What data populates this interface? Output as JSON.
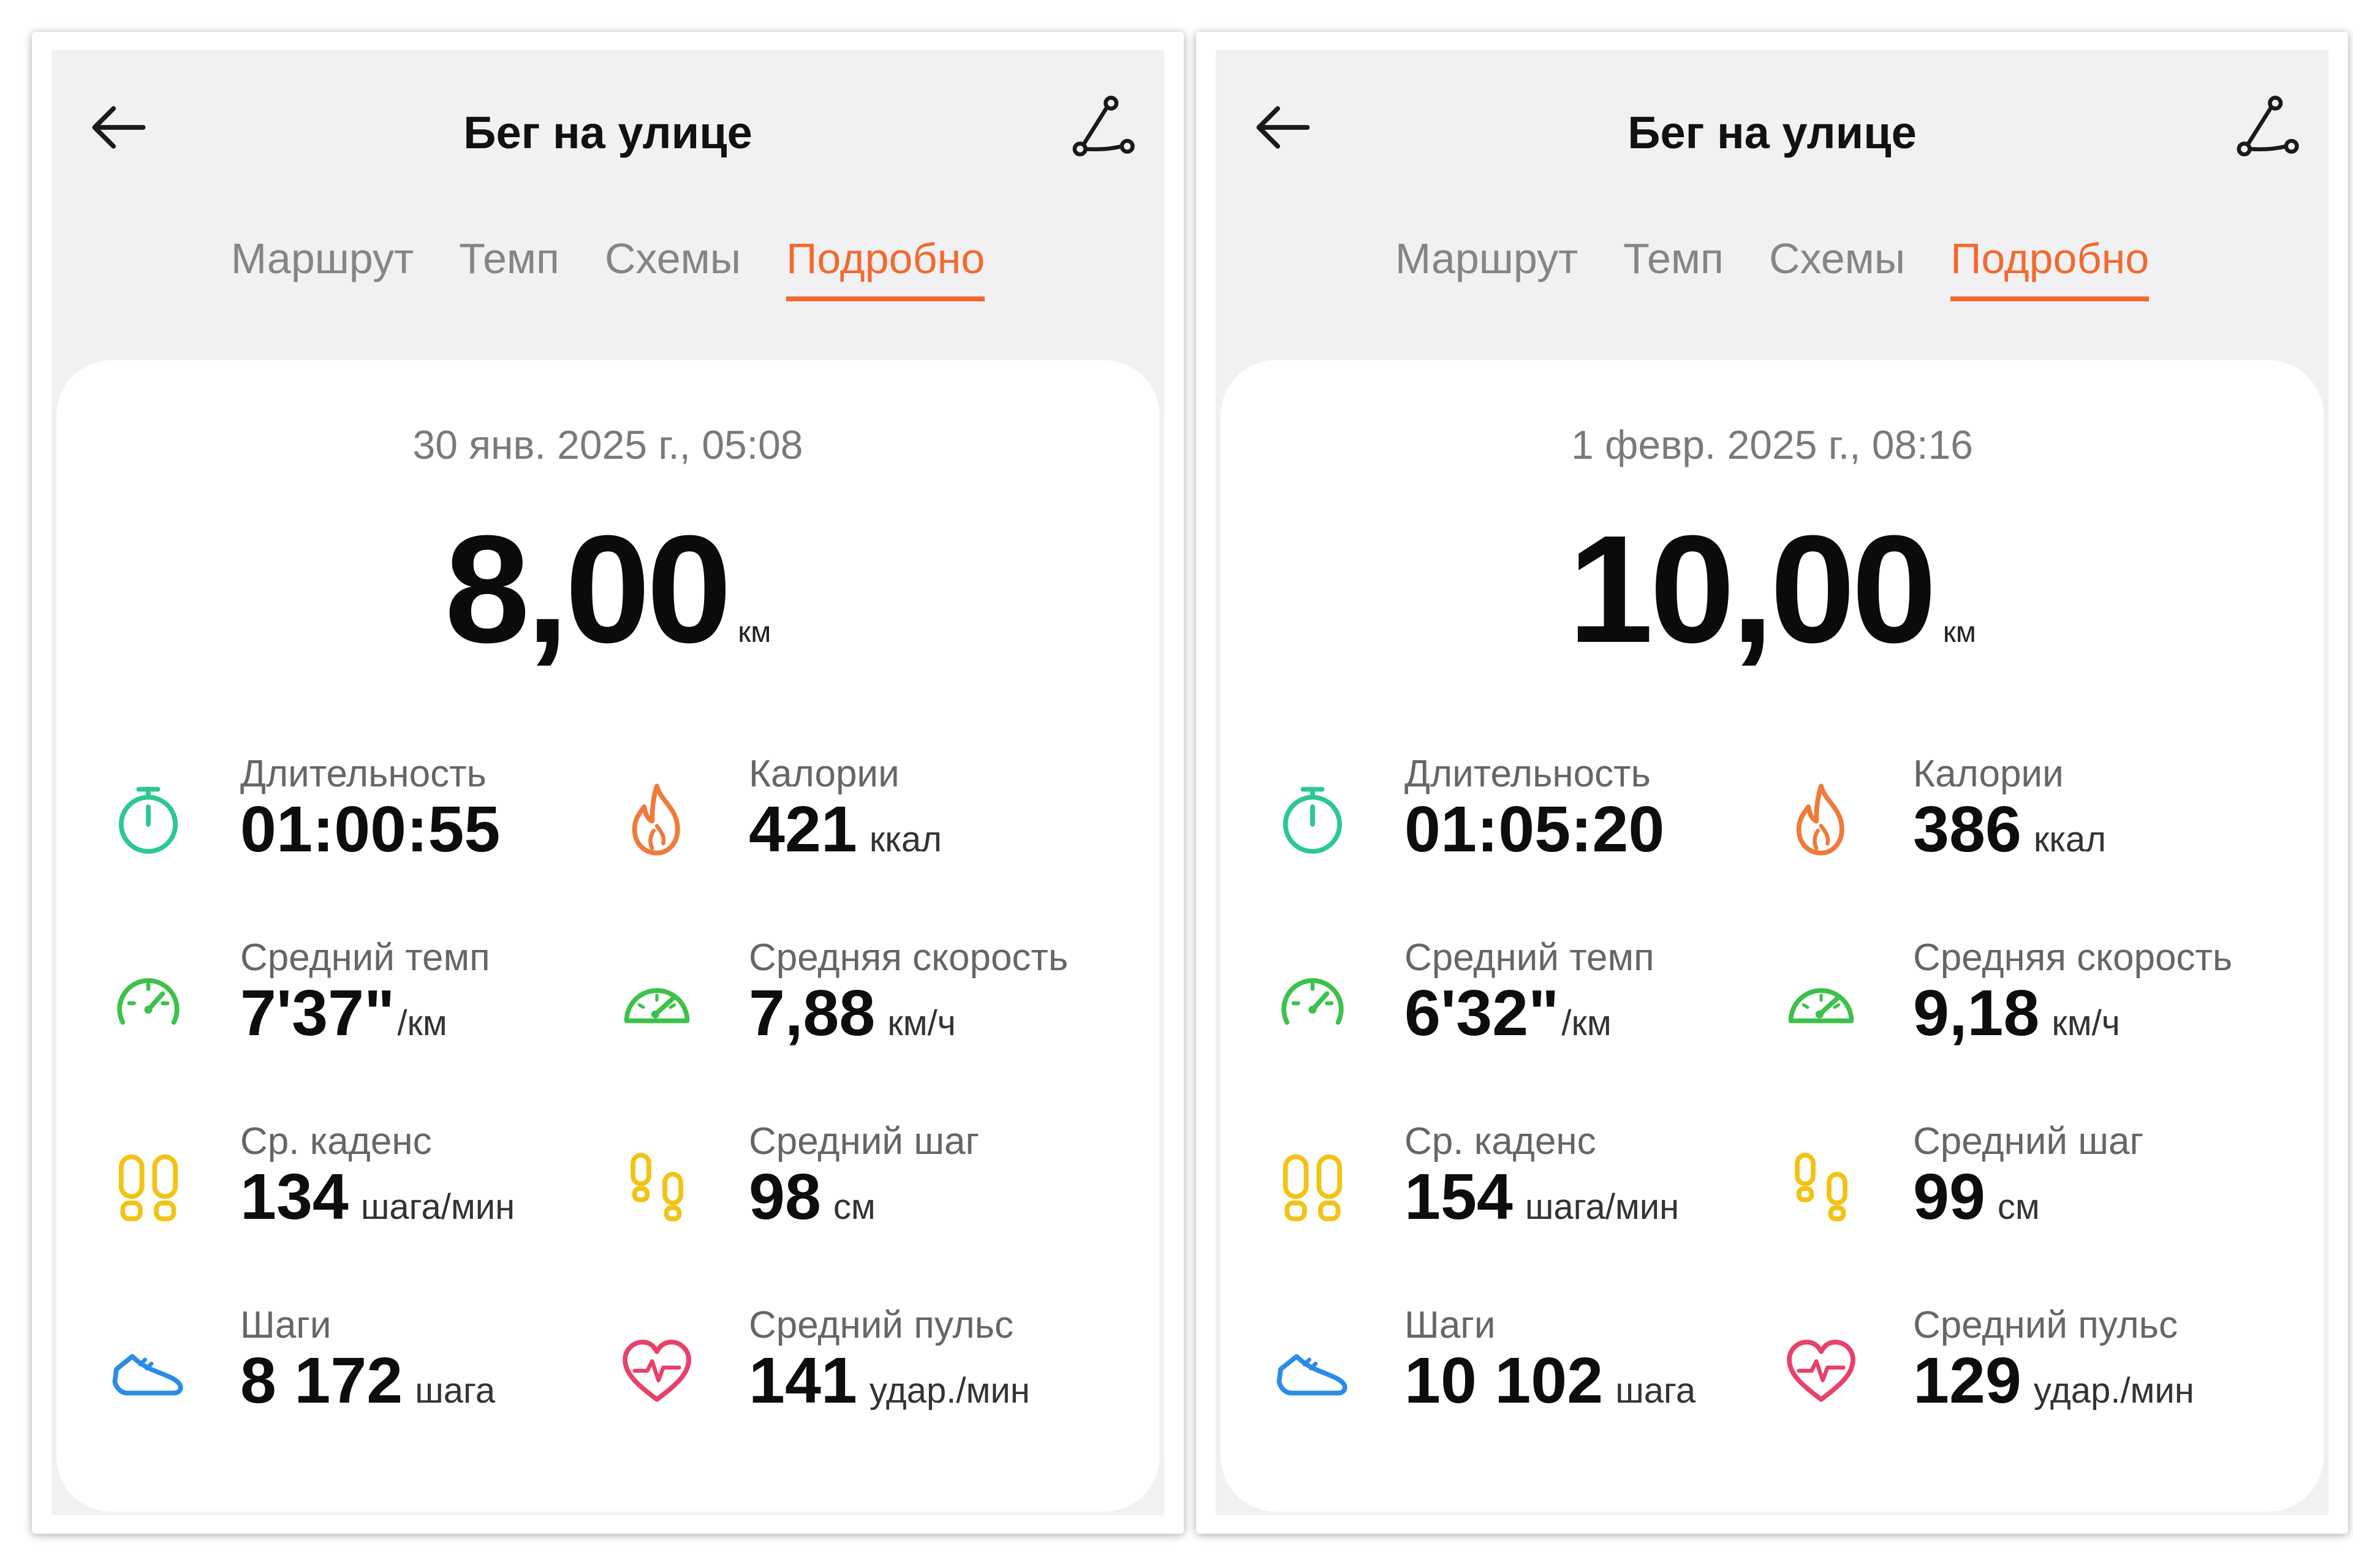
{
  "panels": [
    {
      "title": "Бег на улице",
      "tabs": [
        {
          "label": "Маршрут",
          "active": false
        },
        {
          "label": "Темп",
          "active": false
        },
        {
          "label": "Схемы",
          "active": false
        },
        {
          "label": "Подробно",
          "active": true
        }
      ],
      "date": "30 янв. 2025 г., 05:08",
      "distance": {
        "value": "8,00",
        "unit": "км"
      },
      "stats": {
        "duration": {
          "label": "Длительность",
          "value": "01:00:55",
          "unit": ""
        },
        "calories": {
          "label": "Калории",
          "value": "421",
          "unit": "ккал"
        },
        "avg_pace": {
          "label": "Средний темп",
          "value": "7'37\"",
          "unit": "/км"
        },
        "avg_speed": {
          "label": "Средняя скорость",
          "value": "7,88",
          "unit": "км/ч"
        },
        "cadence": {
          "label": "Ср. каденс",
          "value": "134",
          "unit": "шага/мин"
        },
        "avg_stride": {
          "label": "Средний шаг",
          "value": "98",
          "unit": "см"
        },
        "steps": {
          "label": "Шаги",
          "value": "8 172",
          "unit": "шага"
        },
        "avg_hr": {
          "label": "Средний пульс",
          "value": "141",
          "unit": "удар./мин"
        }
      }
    },
    {
      "title": "Бег на улице",
      "tabs": [
        {
          "label": "Маршрут",
          "active": false
        },
        {
          "label": "Темп",
          "active": false
        },
        {
          "label": "Схемы",
          "active": false
        },
        {
          "label": "Подробно",
          "active": true
        }
      ],
      "date": "1 февр. 2025 г., 08:16",
      "distance": {
        "value": "10,00",
        "unit": "км"
      },
      "stats": {
        "duration": {
          "label": "Длительность",
          "value": "01:05:20",
          "unit": ""
        },
        "calories": {
          "label": "Калории",
          "value": "386",
          "unit": "ккал"
        },
        "avg_pace": {
          "label": "Средний темп",
          "value": "6'32\"",
          "unit": "/км"
        },
        "avg_speed": {
          "label": "Средняя скорость",
          "value": "9,18",
          "unit": "км/ч"
        },
        "cadence": {
          "label": "Ср. каденс",
          "value": "154",
          "unit": "шага/мин"
        },
        "avg_stride": {
          "label": "Средний шаг",
          "value": "99",
          "unit": "см"
        },
        "steps": {
          "label": "Шаги",
          "value": "10 102",
          "unit": "шага"
        },
        "avg_hr": {
          "label": "Средний пульс",
          "value": "129",
          "unit": "удар./мин"
        }
      }
    }
  ],
  "icons": {
    "back": "arrow-left-icon",
    "route": "route-icon",
    "duration": "stopwatch-icon",
    "calories": "flame-icon",
    "pace": "gauge-icon",
    "speed": "speedometer-icon",
    "cadence": "footprints-icon",
    "stride": "footsteps-icon",
    "steps": "running-shoe-icon",
    "hr": "heart-pulse-icon"
  },
  "colors": {
    "accent": "#f26a2f",
    "tab_inactive": "#858585",
    "stopwatch": "#2bc98f",
    "flame": "#f07a3a",
    "gauge": "#3cc24a",
    "footprints": "#f2c314",
    "shoe": "#2a8ce8",
    "heart": "#e8416a"
  }
}
